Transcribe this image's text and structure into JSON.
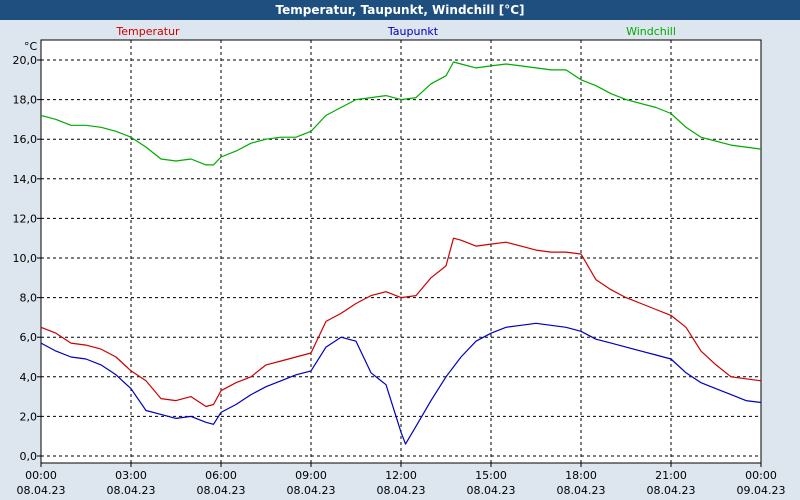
{
  "title": "Temperatur, Taupunkt, Windchill [°C]",
  "chart_data": {
    "type": "line",
    "title": "Temperatur, Taupunkt, Windchill [°C]",
    "ylabel": "°C",
    "ylim": [
      0,
      20.8
    ],
    "xlim_hours": [
      0,
      24
    ],
    "grid": true,
    "legend": "top",
    "y_ticks": [
      "0,0",
      "2,0",
      "4,0",
      "6,0",
      "8,0",
      "10,0",
      "12,0",
      "14,0",
      "16,0",
      "18,0",
      "20,0"
    ],
    "x_ticks": [
      {
        "time": "00:00",
        "date": "08.04.23"
      },
      {
        "time": "03:00",
        "date": "08.04.23"
      },
      {
        "time": "06:00",
        "date": "08.04.23"
      },
      {
        "time": "09:00",
        "date": "08.04.23"
      },
      {
        "time": "12:00",
        "date": "08.04.23"
      },
      {
        "time": "15:00",
        "date": "08.04.23"
      },
      {
        "time": "18:00",
        "date": "08.04.23"
      },
      {
        "time": "21:00",
        "date": "08.04.23"
      },
      {
        "time": "00:00",
        "date": "09.04.23"
      }
    ],
    "series": [
      {
        "name": "Temperatur",
        "color": "#cc0000",
        "x": [
          0,
          0.5,
          1,
          1.5,
          2,
          2.5,
          3,
          3.5,
          4,
          4.5,
          5,
          5.5,
          5.75,
          6,
          6.5,
          7,
          7.5,
          8,
          8.5,
          9,
          9.5,
          10,
          10.5,
          11,
          11.5,
          12,
          12.5,
          13,
          13.5,
          13.75,
          14,
          14.5,
          15,
          15.5,
          16,
          16.5,
          17,
          17.5,
          18,
          18.5,
          19,
          19.5,
          20,
          20.5,
          21,
          21.5,
          22,
          22.5,
          23,
          23.5,
          24
        ],
        "y": [
          6.5,
          6.2,
          5.7,
          5.6,
          5.4,
          5.0,
          4.3,
          3.8,
          2.9,
          2.8,
          3.0,
          2.5,
          2.6,
          3.3,
          3.7,
          4.0,
          4.6,
          4.8,
          5.0,
          5.2,
          6.8,
          7.2,
          7.7,
          8.1,
          8.3,
          8.0,
          8.1,
          9.0,
          9.6,
          11.0,
          10.9,
          10.6,
          10.7,
          10.8,
          10.6,
          10.4,
          10.3,
          10.3,
          10.2,
          8.9,
          8.4,
          8.0,
          7.7,
          7.4,
          7.1,
          6.5,
          5.3,
          4.6,
          4.0,
          3.9,
          3.8
        ]
      },
      {
        "name": "Taupunkt",
        "color": "#0000bb",
        "x": [
          0,
          0.5,
          1,
          1.5,
          2,
          2.5,
          3,
          3.5,
          4,
          4.5,
          5,
          5.5,
          5.75,
          6,
          6.5,
          7,
          7.5,
          8,
          8.5,
          9,
          9.5,
          10,
          10.5,
          11,
          11.5,
          12,
          12.15,
          12.5,
          13,
          13.5,
          14,
          14.5,
          15,
          15.5,
          16,
          16.5,
          17,
          17.5,
          18,
          18.5,
          19,
          19.5,
          20,
          20.5,
          21,
          21.5,
          22,
          22.5,
          23,
          23.5,
          24
        ],
        "y": [
          5.7,
          5.3,
          5.0,
          4.9,
          4.6,
          4.1,
          3.4,
          2.3,
          2.1,
          1.9,
          2.0,
          1.7,
          1.6,
          2.2,
          2.6,
          3.1,
          3.5,
          3.8,
          4.1,
          4.3,
          5.5,
          6.0,
          5.8,
          4.2,
          3.6,
          1.2,
          0.6,
          1.5,
          2.8,
          4.0,
          5.0,
          5.8,
          6.2,
          6.5,
          6.6,
          6.7,
          6.6,
          6.5,
          6.3,
          5.9,
          5.7,
          5.5,
          5.3,
          5.1,
          4.9,
          4.2,
          3.7,
          3.4,
          3.1,
          2.8,
          2.7
        ]
      },
      {
        "name": "Windchill",
        "color": "#00aa00",
        "x": [
          0,
          0.5,
          1,
          1.5,
          2,
          2.5,
          3,
          3.5,
          4,
          4.5,
          5,
          5.5,
          5.75,
          6,
          6.5,
          7,
          7.5,
          8,
          8.5,
          9,
          9.5,
          10,
          10.5,
          11,
          11.5,
          12,
          12.5,
          13,
          13.5,
          13.75,
          14,
          14.5,
          15,
          15.5,
          16,
          16.5,
          17,
          17.5,
          18,
          18.5,
          19,
          19.5,
          20,
          20.5,
          21,
          21.5,
          22,
          22.5,
          23,
          23.5,
          24
        ],
        "y": [
          17.2,
          17.0,
          16.7,
          16.7,
          16.6,
          16.4,
          16.1,
          15.6,
          15.0,
          14.9,
          15.0,
          14.7,
          14.7,
          15.1,
          15.4,
          15.8,
          16.0,
          16.1,
          16.1,
          16.4,
          17.2,
          17.6,
          18.0,
          18.1,
          18.2,
          18.0,
          18.1,
          18.8,
          19.2,
          19.9,
          19.8,
          19.6,
          19.7,
          19.8,
          19.7,
          19.6,
          19.5,
          19.5,
          19.0,
          18.7,
          18.3,
          18.0,
          17.8,
          17.6,
          17.3,
          16.6,
          16.1,
          15.9,
          15.7,
          15.6,
          15.5
        ]
      }
    ]
  }
}
